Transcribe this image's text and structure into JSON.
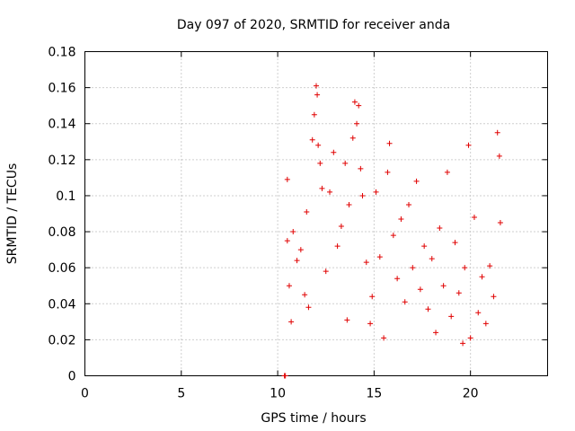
{
  "colors": {
    "series": "#e00000",
    "grid": "#a0a0a0",
    "axis": "#000000"
  },
  "chart_data": {
    "type": "scatter",
    "title": "Day 097 of 2020, SRMTID for receiver anda",
    "xlabel": "GPS time / hours",
    "ylabel": "SRMTID / TECUs",
    "xlim": [
      0,
      24
    ],
    "ylim": [
      0,
      0.18
    ],
    "xticks": [
      0,
      5,
      10,
      15,
      20
    ],
    "xtick_labels": [
      "0",
      "5",
      "10",
      "15",
      "20"
    ],
    "yticks": [
      0,
      0.02,
      0.04,
      0.06,
      0.08,
      0.1,
      0.12,
      0.14,
      0.16,
      0.18
    ],
    "ytick_labels": [
      "0",
      "0.02",
      "0.04",
      "0.06",
      "0.08",
      "0.1",
      "0.12",
      "0.14",
      "0.16",
      "0.18"
    ],
    "grid": true,
    "marker": "plus",
    "series": [
      {
        "name": "SRMTID",
        "x_range": [
          10.3,
          21.6
        ],
        "typical_range": [
          0.03,
          0.09
        ],
        "points": [
          [
            10.35,
            0.0
          ],
          [
            10.4,
            0.0
          ],
          [
            10.5,
            0.109
          ],
          [
            10.5,
            0.075
          ],
          [
            10.6,
            0.05
          ],
          [
            10.7,
            0.03
          ],
          [
            10.8,
            0.08
          ],
          [
            11.0,
            0.064
          ],
          [
            11.2,
            0.07
          ],
          [
            11.4,
            0.045
          ],
          [
            11.5,
            0.091
          ],
          [
            11.6,
            0.038
          ],
          [
            11.8,
            0.131
          ],
          [
            11.9,
            0.145
          ],
          [
            12.0,
            0.161
          ],
          [
            12.05,
            0.156
          ],
          [
            12.1,
            0.128
          ],
          [
            12.2,
            0.118
          ],
          [
            12.3,
            0.104
          ],
          [
            12.5,
            0.058
          ],
          [
            12.7,
            0.102
          ],
          [
            12.9,
            0.124
          ],
          [
            13.1,
            0.072
          ],
          [
            13.3,
            0.083
          ],
          [
            13.5,
            0.118
          ],
          [
            13.6,
            0.031
          ],
          [
            13.7,
            0.095
          ],
          [
            13.9,
            0.132
          ],
          [
            14.0,
            0.152
          ],
          [
            14.1,
            0.14
          ],
          [
            14.2,
            0.15
          ],
          [
            14.3,
            0.115
          ],
          [
            14.4,
            0.1
          ],
          [
            14.6,
            0.063
          ],
          [
            14.8,
            0.029
          ],
          [
            14.9,
            0.044
          ],
          [
            15.1,
            0.102
          ],
          [
            15.3,
            0.066
          ],
          [
            15.5,
            0.021
          ],
          [
            15.7,
            0.113
          ],
          [
            15.8,
            0.129
          ],
          [
            16.0,
            0.078
          ],
          [
            16.2,
            0.054
          ],
          [
            16.4,
            0.087
          ],
          [
            16.6,
            0.041
          ],
          [
            16.8,
            0.095
          ],
          [
            17.0,
            0.06
          ],
          [
            17.2,
            0.108
          ],
          [
            17.4,
            0.048
          ],
          [
            17.6,
            0.072
          ],
          [
            17.8,
            0.037
          ],
          [
            18.0,
            0.065
          ],
          [
            18.2,
            0.024
          ],
          [
            18.4,
            0.082
          ],
          [
            18.6,
            0.05
          ],
          [
            18.8,
            0.113
          ],
          [
            19.0,
            0.033
          ],
          [
            19.2,
            0.074
          ],
          [
            19.4,
            0.046
          ],
          [
            19.6,
            0.018
          ],
          [
            19.7,
            0.06
          ],
          [
            19.9,
            0.128
          ],
          [
            20.0,
            0.021
          ],
          [
            20.2,
            0.088
          ],
          [
            20.4,
            0.035
          ],
          [
            20.6,
            0.055
          ],
          [
            20.8,
            0.029
          ],
          [
            21.0,
            0.061
          ],
          [
            21.2,
            0.044
          ],
          [
            21.4,
            0.135
          ],
          [
            21.5,
            0.122
          ],
          [
            21.55,
            0.085
          ]
        ]
      }
    ]
  }
}
